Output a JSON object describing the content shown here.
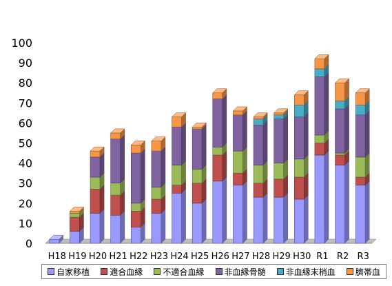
{
  "chart_data": {
    "type": "bar",
    "stacked": true,
    "style": "3d",
    "categories": [
      "H18",
      "H19",
      "H20",
      "H21",
      "H22",
      "H23",
      "H24",
      "H25",
      "H26",
      "H27",
      "H28",
      "H29",
      "H30",
      "R1",
      "R2",
      "R3"
    ],
    "ylim": [
      0,
      100
    ],
    "yticks": [
      "0",
      "10",
      "20",
      "30",
      "40",
      "50",
      "60",
      "70",
      "80",
      "90",
      "100"
    ],
    "grid": false,
    "legend_position": "bottom",
    "series": [
      {
        "name": "自家移植",
        "color": "#9999ff",
        "values": [
          2,
          6,
          15,
          14,
          8,
          15,
          25,
          20,
          31,
          29,
          23,
          23,
          22,
          44,
          39,
          29
        ]
      },
      {
        "name": "適合血縁",
        "color": "#c0504d",
        "values": [
          0,
          7,
          12,
          10,
          8,
          7,
          4,
          10,
          13,
          6,
          7,
          9,
          11,
          6,
          5,
          4
        ]
      },
      {
        "name": "不適合血縁",
        "color": "#9bbb59",
        "values": [
          0,
          2,
          6,
          6,
          4,
          6,
          10,
          7,
          4,
          11,
          9,
          8,
          9,
          4,
          1,
          10
        ]
      },
      {
        "name": "非血縁骨髄",
        "color": "#8064a2",
        "values": [
          0,
          0,
          10,
          22,
          25,
          18,
          19,
          20,
          24,
          18,
          20,
          22,
          21,
          29,
          22,
          21
        ]
      },
      {
        "name": "非血縁末梢血",
        "color": "#4bacc6",
        "values": [
          0,
          0,
          0,
          0,
          0,
          0,
          0,
          0,
          0,
          0,
          3,
          2,
          6,
          4,
          4,
          5
        ]
      },
      {
        "name": "臍帯血",
        "color": "#f79646",
        "values": [
          0,
          1,
          3,
          3,
          4,
          5,
          5,
          1,
          3,
          2,
          1,
          1,
          5,
          5,
          9,
          6
        ]
      }
    ]
  }
}
